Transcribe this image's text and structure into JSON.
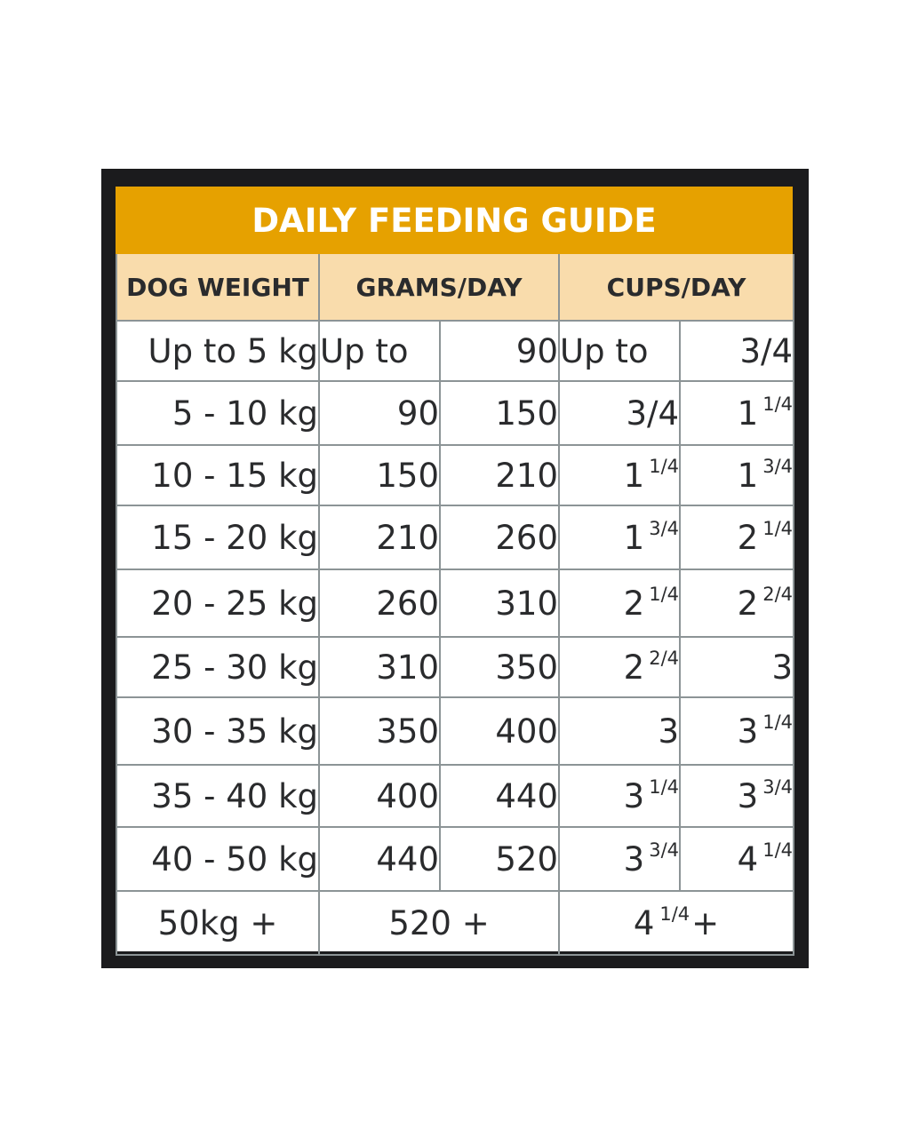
{
  "title": "DAILY FEEDING GUIDE",
  "headers": {
    "weight": "DOG WEIGHT",
    "grams": "GRAMS/DAY",
    "cups": "CUPS/DAY"
  },
  "rows": [
    {
      "weight": "Up to 5 kg",
      "g_from": "Up to",
      "g_to": "90",
      "c_from": {
        "whole": "Up to",
        "frac": ""
      },
      "c_to": {
        "whole": "3/4",
        "frac": ""
      }
    },
    {
      "weight": "5 - 10 kg",
      "g_from": "90",
      "g_to": "150",
      "c_from": {
        "whole": "3/4",
        "frac": ""
      },
      "c_to": {
        "whole": "1",
        "frac": "1/4"
      }
    },
    {
      "weight": "10 - 15 kg",
      "g_from": "150",
      "g_to": "210",
      "c_from": {
        "whole": "1",
        "frac": "1/4"
      },
      "c_to": {
        "whole": "1",
        "frac": "3/4"
      }
    },
    {
      "weight": "15 - 20 kg",
      "g_from": "210",
      "g_to": "260",
      "c_from": {
        "whole": "1",
        "frac": "3/4"
      },
      "c_to": {
        "whole": "2",
        "frac": "1/4"
      }
    },
    {
      "weight": "20 - 25 kg",
      "g_from": "260",
      "g_to": "310",
      "c_from": {
        "whole": "2",
        "frac": "1/4"
      },
      "c_to": {
        "whole": "2",
        "frac": "2/4"
      }
    },
    {
      "weight": "25 - 30 kg",
      "g_from": "310",
      "g_to": "350",
      "c_from": {
        "whole": "2",
        "frac": "2/4"
      },
      "c_to": {
        "whole": "3",
        "frac": ""
      }
    },
    {
      "weight": "30 - 35 kg",
      "g_from": "350",
      "g_to": "400",
      "c_from": {
        "whole": "3",
        "frac": ""
      },
      "c_to": {
        "whole": "3",
        "frac": "1/4"
      }
    },
    {
      "weight": "35 - 40 kg",
      "g_from": "400",
      "g_to": "440",
      "c_from": {
        "whole": "3",
        "frac": "1/4"
      },
      "c_to": {
        "whole": "3",
        "frac": "3/4"
      }
    },
    {
      "weight": "40 - 50 kg",
      "g_from": "440",
      "g_to": "520",
      "c_from": {
        "whole": "3",
        "frac": "3/4"
      },
      "c_to": {
        "whole": "4",
        "frac": "1/4"
      }
    }
  ],
  "last_row": {
    "weight": "50kg +",
    "grams": "520 +",
    "cups_whole": "4",
    "cups_frac": "1/4",
    "cups_suffix": "+"
  },
  "colors": {
    "title_bg": "#e6a100",
    "header_bg": "#f9dcac",
    "frame": "#1b1b1d",
    "grid": "#8c9496"
  }
}
